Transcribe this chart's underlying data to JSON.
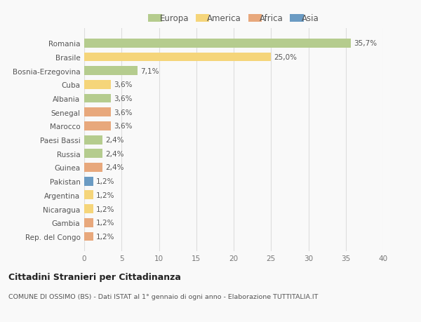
{
  "countries": [
    "Romania",
    "Brasile",
    "Bosnia-Erzegovina",
    "Cuba",
    "Albania",
    "Senegal",
    "Marocco",
    "Paesi Bassi",
    "Russia",
    "Guinea",
    "Pakistan",
    "Argentina",
    "Nicaragua",
    "Gambia",
    "Rep. del Congo"
  ],
  "values": [
    35.7,
    25.0,
    7.1,
    3.6,
    3.6,
    3.6,
    3.6,
    2.4,
    2.4,
    2.4,
    1.2,
    1.2,
    1.2,
    1.2,
    1.2
  ],
  "labels": [
    "35,7%",
    "25,0%",
    "7,1%",
    "3,6%",
    "3,6%",
    "3,6%",
    "3,6%",
    "2,4%",
    "2,4%",
    "2,4%",
    "1,2%",
    "1,2%",
    "1,2%",
    "1,2%",
    "1,2%"
  ],
  "continents": [
    "Europa",
    "America",
    "Europa",
    "America",
    "Europa",
    "Africa",
    "Africa",
    "Europa",
    "Europa",
    "Africa",
    "Asia",
    "America",
    "America",
    "Africa",
    "Africa"
  ],
  "colors": {
    "Europa": "#b5cc8e",
    "America": "#f5d57a",
    "Africa": "#e8a87c",
    "Asia": "#6b9bc3"
  },
  "xlim": [
    0,
    40
  ],
  "xticks": [
    0,
    5,
    10,
    15,
    20,
    25,
    30,
    35,
    40
  ],
  "title": "Cittadini Stranieri per Cittadinanza",
  "subtitle": "COMUNE DI OSSIMO (BS) - Dati ISTAT al 1° gennaio di ogni anno - Elaborazione TUTTITALIA.IT",
  "bg_color": "#f9f9f9",
  "grid_color": "#dddddd",
  "label_color": "#777777",
  "text_color": "#555555"
}
